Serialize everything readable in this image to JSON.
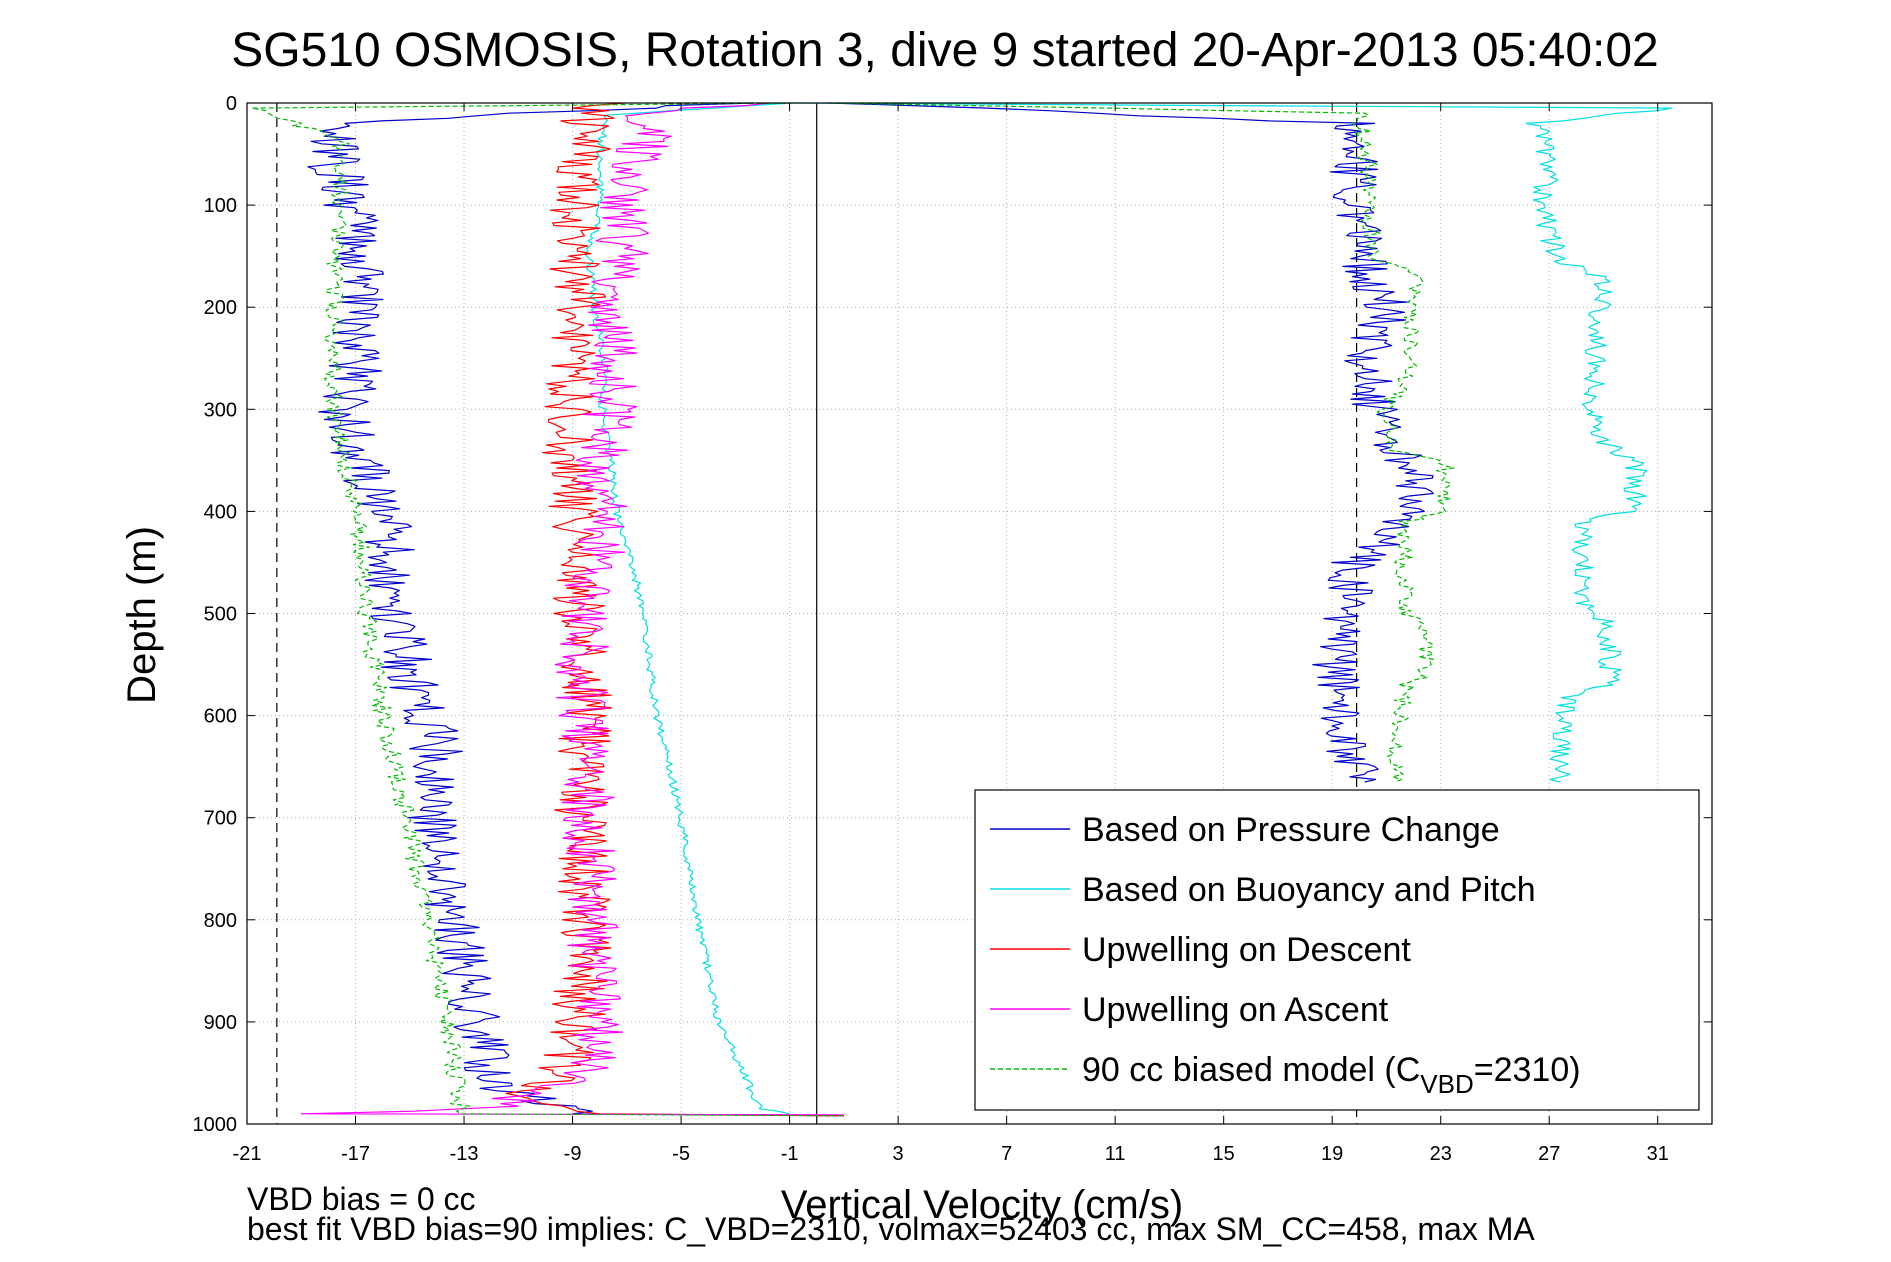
{
  "chart_data": {
    "type": "line",
    "title": "SG510 OSMOSIS, Rotation 3, dive 9 started 20-Apr-2013 05:40:02",
    "xlabel": "Vertical Velocity (cm/s)",
    "ylabel": "Depth (m)",
    "xlim": [
      -21,
      33
    ],
    "ylim": [
      1000,
      0
    ],
    "y_reversed": true,
    "grid": true,
    "legend_position": "bottom-right",
    "x_ticks": [
      "-21",
      "-17",
      "-13",
      "-9",
      "-5",
      "-1",
      "3",
      "7",
      "11",
      "15",
      "19",
      "23",
      "27",
      "31"
    ],
    "y_ticks": [
      "0",
      "100",
      "200",
      "300",
      "400",
      "500",
      "600",
      "700",
      "800",
      "900",
      "1000"
    ],
    "reference_lines": [
      {
        "x": -19.9,
        "style": "dashed",
        "color": "#000000"
      },
      {
        "x": 0.0,
        "style": "solid",
        "color": "#000000"
      },
      {
        "x": 19.9,
        "style": "dashed",
        "color": "#000000"
      }
    ],
    "series": [
      {
        "name": "Based on Pressure Change",
        "color": "#0000cc",
        "style": "solid",
        "noise": 1.0,
        "points": [
          [
            -3,
            0
          ],
          [
            -18,
            20
          ],
          [
            -17.8,
            60
          ],
          [
            -17.2,
            100
          ],
          [
            -17,
            150
          ],
          [
            -16.8,
            200
          ],
          [
            -17,
            260
          ],
          [
            -17.5,
            300
          ],
          [
            -16.8,
            350
          ],
          [
            -16,
            400
          ],
          [
            -15.5,
            500
          ],
          [
            -15,
            560
          ],
          [
            -14,
            620
          ],
          [
            -14.2,
            700
          ],
          [
            -13.5,
            800
          ],
          [
            -12.5,
            900
          ],
          [
            -12,
            960
          ],
          [
            -9,
            990
          ],
          [
            1,
            992
          ]
        ]
      },
      {
        "name": "Based on Pressure Change",
        "color": "#0000cc",
        "style": "solid",
        "noise": 0.9,
        "points": [
          [
            1,
            0
          ],
          [
            19.7,
            20
          ],
          [
            19.9,
            100
          ],
          [
            20,
            150
          ],
          [
            21,
            200
          ],
          [
            20.2,
            260
          ],
          [
            20.8,
            320
          ],
          [
            21.8,
            360
          ],
          [
            22.2,
            400
          ],
          [
            19.8,
            450
          ],
          [
            19.5,
            500
          ],
          [
            19.1,
            560
          ],
          [
            19.3,
            620
          ],
          [
            19.8,
            650
          ],
          [
            20.2,
            665
          ]
        ]
      },
      {
        "name": "Based on Buoyancy and Pitch",
        "color": "#00e0e0",
        "style": "solid",
        "noise": 0.15,
        "points": [
          [
            -1,
            0
          ],
          [
            -7.8,
            12
          ],
          [
            -8,
            50
          ],
          [
            -8,
            100
          ],
          [
            -8.4,
            150
          ],
          [
            -8.2,
            200
          ],
          [
            -7.8,
            260
          ],
          [
            -7.9,
            300
          ],
          [
            -7.6,
            350
          ],
          [
            -7.4,
            400
          ],
          [
            -6.8,
            450
          ],
          [
            -6.4,
            500
          ],
          [
            -5.9,
            600
          ],
          [
            -5,
            700
          ],
          [
            -4.4,
            800
          ],
          [
            -3.6,
            900
          ],
          [
            -2.7,
            950
          ],
          [
            -2.1,
            985
          ],
          [
            -1,
            990
          ]
        ]
      },
      {
        "name": "Based on Buoyancy and Pitch",
        "color": "#00e0e0",
        "style": "solid",
        "noise": 0.45,
        "points": [
          [
            -1,
            0
          ],
          [
            31.6,
            5
          ],
          [
            26.5,
            20
          ],
          [
            26.9,
            60
          ],
          [
            26.8,
            100
          ],
          [
            27.2,
            150
          ],
          [
            28.9,
            170
          ],
          [
            28.7,
            250
          ],
          [
            28.6,
            300
          ],
          [
            28.8,
            330
          ],
          [
            30.2,
            350
          ],
          [
            30.2,
            400
          ],
          [
            28.2,
            410
          ],
          [
            28.2,
            500
          ],
          [
            29.2,
            510
          ],
          [
            29.2,
            570
          ],
          [
            27.8,
            580
          ],
          [
            27.4,
            620
          ],
          [
            27.4,
            665
          ]
        ]
      },
      {
        "name": "Upwelling on Descent",
        "color": "#ff0000",
        "style": "solid",
        "noise": 1.0,
        "points": [
          [
            -8,
            0
          ],
          [
            -8.5,
            20
          ],
          [
            -8.6,
            60
          ],
          [
            -8.8,
            100
          ],
          [
            -9,
            150
          ],
          [
            -8.6,
            200
          ],
          [
            -9,
            260
          ],
          [
            -9.3,
            300
          ],
          [
            -9,
            400
          ],
          [
            -8.8,
            500
          ],
          [
            -8.5,
            600
          ],
          [
            -8.7,
            700
          ],
          [
            -8.5,
            800
          ],
          [
            -8.8,
            900
          ],
          [
            -9.4,
            950
          ],
          [
            -11,
            975
          ],
          [
            -8,
            990
          ],
          [
            1,
            992
          ]
        ]
      },
      {
        "name": "Upwelling on Ascent",
        "color": "#ff00ff",
        "style": "solid",
        "noise": 1.0,
        "points": [
          [
            -2,
            0
          ],
          [
            -6.2,
            10
          ],
          [
            -6.4,
            50
          ],
          [
            -7,
            100
          ],
          [
            -7.2,
            150
          ],
          [
            -7.4,
            200
          ],
          [
            -7.6,
            260
          ],
          [
            -7.6,
            300
          ],
          [
            -8,
            350
          ],
          [
            -7.6,
            400
          ],
          [
            -8.6,
            500
          ],
          [
            -8.7,
            600
          ],
          [
            -8.4,
            700
          ],
          [
            -8.3,
            800
          ],
          [
            -8,
            900
          ],
          [
            -8.5,
            950
          ],
          [
            -12,
            985
          ],
          [
            -19,
            990
          ],
          [
            1,
            991
          ]
        ]
      },
      {
        "name": "90 cc biased model (C_VBD=2310)",
        "color": "#00bb00",
        "style": "dashed",
        "noise": 0.35,
        "points": [
          [
            -1,
            0
          ],
          [
            -20.5,
            5
          ],
          [
            -17.5,
            40
          ],
          [
            -17.6,
            100
          ],
          [
            -17.8,
            200
          ],
          [
            -17.9,
            250
          ],
          [
            -17.8,
            300
          ],
          [
            -17.5,
            350
          ],
          [
            -16.9,
            400
          ],
          [
            -16.6,
            500
          ],
          [
            -16,
            600
          ],
          [
            -15.1,
            700
          ],
          [
            -14.4,
            800
          ],
          [
            -13.6,
            900
          ],
          [
            -13.1,
            990
          ],
          [
            1,
            992
          ]
        ]
      },
      {
        "name": "90 cc biased model (C_VBD=2310)",
        "color": "#00bb00",
        "style": "dashed",
        "noise": 0.35,
        "points": [
          [
            1,
            0
          ],
          [
            20,
            10
          ],
          [
            20.3,
            50
          ],
          [
            20.4,
            100
          ],
          [
            20.5,
            150
          ],
          [
            22.1,
            170
          ],
          [
            21.9,
            260
          ],
          [
            21,
            300
          ],
          [
            21.2,
            340
          ],
          [
            23.2,
            350
          ],
          [
            23.2,
            400
          ],
          [
            21.7,
            410
          ],
          [
            21.6,
            500
          ],
          [
            22.5,
            510
          ],
          [
            22.5,
            560
          ],
          [
            21.7,
            570
          ],
          [
            21.4,
            620
          ],
          [
            21.3,
            665
          ]
        ]
      }
    ]
  },
  "legend": {
    "entries": [
      {
        "text": "Based on Pressure Change",
        "color": "#0000cc",
        "dashed": false
      },
      {
        "text": "Based on Buoyancy and Pitch",
        "color": "#00e0e0",
        "dashed": false
      },
      {
        "text": "Upwelling on Descent",
        "color": "#ff0000",
        "dashed": false
      },
      {
        "text": "Upwelling on Ascent",
        "color": "#ff00ff",
        "dashed": false
      },
      {
        "text": "90 cc biased model (C",
        "sub": "VBD",
        "tail": "=2310)",
        "color": "#00bb00",
        "dashed": true
      }
    ]
  },
  "footnotes": {
    "vbd_bias": "VBD bias = 0 cc",
    "best_fit": "best fit VBD bias=90 implies: C_VBD=2310, volmax=52403 cc, max SM_CC=458, max MA"
  }
}
